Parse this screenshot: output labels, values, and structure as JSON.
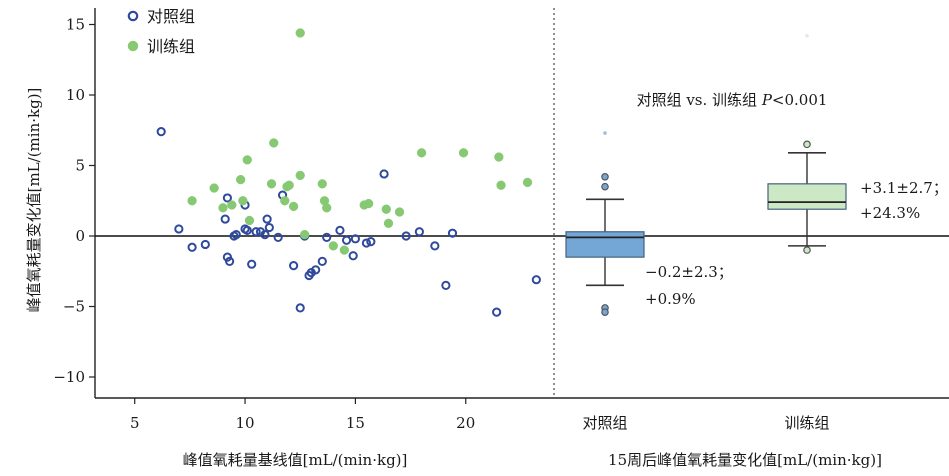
{
  "chart_data": [
    {
      "type": "scatter",
      "xlabel": "峰值氧耗量基线值[mL/(min·kg)]",
      "ylabel": "峰值氧耗量变化值[mL/(min·kg)]",
      "xlim": [
        3.2,
        24
      ],
      "ylim": [
        -11.2,
        16
      ],
      "x_ticks": [
        "5",
        "10",
        "15",
        "20"
      ],
      "y_ticks": [
        "15",
        "10",
        "5",
        "0",
        "−5",
        "−10"
      ],
      "reference_line_y": 0,
      "grid": false,
      "legend_position": "top-left",
      "series": [
        {
          "name": "对照组",
          "color": "#2f4a9c",
          "marker": "hollow-circle",
          "points": [
            [
              6.2,
              7.4
            ],
            [
              7.0,
              0.5
            ],
            [
              7.6,
              -0.8
            ],
            [
              8.2,
              -0.6
            ],
            [
              9.1,
              1.2
            ],
            [
              9.2,
              2.7
            ],
            [
              9.2,
              -1.5
            ],
            [
              9.3,
              -1.8
            ],
            [
              9.5,
              0.0
            ],
            [
              9.6,
              0.1
            ],
            [
              10.0,
              0.5
            ],
            [
              10.0,
              2.2
            ],
            [
              10.1,
              0.4
            ],
            [
              10.3,
              -2.0
            ],
            [
              10.5,
              0.3
            ],
            [
              10.7,
              0.3
            ],
            [
              10.9,
              0.1
            ],
            [
              11.0,
              1.2
            ],
            [
              11.1,
              0.6
            ],
            [
              11.5,
              -0.1
            ],
            [
              11.7,
              2.9
            ],
            [
              12.2,
              -2.1
            ],
            [
              12.5,
              -5.1
            ],
            [
              12.7,
              0.0
            ],
            [
              12.9,
              -2.8
            ],
            [
              13.0,
              -2.6
            ],
            [
              13.2,
              -2.4
            ],
            [
              13.5,
              -1.8
            ],
            [
              13.7,
              -0.1
            ],
            [
              14.3,
              0.4
            ],
            [
              14.6,
              -0.3
            ],
            [
              14.9,
              -1.4
            ],
            [
              15.0,
              -0.2
            ],
            [
              15.5,
              -0.5
            ],
            [
              15.7,
              -0.4
            ],
            [
              16.3,
              4.4
            ],
            [
              17.3,
              0.0
            ],
            [
              17.9,
              0.3
            ],
            [
              18.6,
              -0.7
            ],
            [
              19.1,
              -3.5
            ],
            [
              19.4,
              0.2
            ],
            [
              21.4,
              -5.4
            ],
            [
              23.2,
              -3.1
            ]
          ]
        },
        {
          "name": "训练组",
          "color": "#86c972",
          "marker": "filled-circle",
          "points": [
            [
              7.6,
              2.5
            ],
            [
              8.6,
              3.4
            ],
            [
              9.0,
              2.0
            ],
            [
              9.4,
              2.2
            ],
            [
              9.8,
              4.0
            ],
            [
              9.9,
              2.5
            ],
            [
              10.1,
              5.4
            ],
            [
              10.2,
              1.1
            ],
            [
              11.2,
              3.7
            ],
            [
              11.3,
              6.6
            ],
            [
              11.8,
              2.5
            ],
            [
              11.9,
              3.5
            ],
            [
              12.0,
              3.6
            ],
            [
              12.2,
              2.1
            ],
            [
              12.5,
              14.4
            ],
            [
              12.5,
              4.3
            ],
            [
              12.7,
              0.1
            ],
            [
              13.5,
              3.7
            ],
            [
              13.6,
              2.5
            ],
            [
              13.7,
              2.0
            ],
            [
              14.0,
              -0.7
            ],
            [
              14.5,
              -1.0
            ],
            [
              15.4,
              2.2
            ],
            [
              15.6,
              2.3
            ],
            [
              16.4,
              1.9
            ],
            [
              16.5,
              0.9
            ],
            [
              17.0,
              1.7
            ],
            [
              18.0,
              5.9
            ],
            [
              19.9,
              5.9
            ],
            [
              21.5,
              5.6
            ],
            [
              21.6,
              3.6
            ],
            [
              22.8,
              3.8
            ]
          ]
        }
      ]
    },
    {
      "type": "box",
      "xlabel": "15周后峰值氧耗量变化值[mL/(min·kg)]",
      "categories": [
        "对照组",
        "训练组"
      ],
      "annotation": "对照组 vs. 训练组 P<0.001",
      "boxes": [
        {
          "name": "对照组",
          "color": "#74a6d6",
          "whisker_low": -3.5,
          "q1": -1.5,
          "median": -0.1,
          "q3": 0.3,
          "whisker_high": 2.6,
          "outliers": [
            3.5,
            4.2,
            -5.1,
            -5.4
          ],
          "extreme": [
            7.3
          ],
          "label_line1": "−0.2±2.3；",
          "label_line2": "+0.9%"
        },
        {
          "name": "训练组",
          "color": "#cce8c4",
          "whisker_low": -0.7,
          "q1": 1.9,
          "median": 2.4,
          "q3": 3.7,
          "whisker_high": 5.9,
          "outliers": [
            6.5,
            -1.0
          ],
          "extreme": [
            14.2
          ],
          "label_line1": "+3.1±2.7；",
          "label_line2": "+24.3%"
        }
      ]
    }
  ]
}
